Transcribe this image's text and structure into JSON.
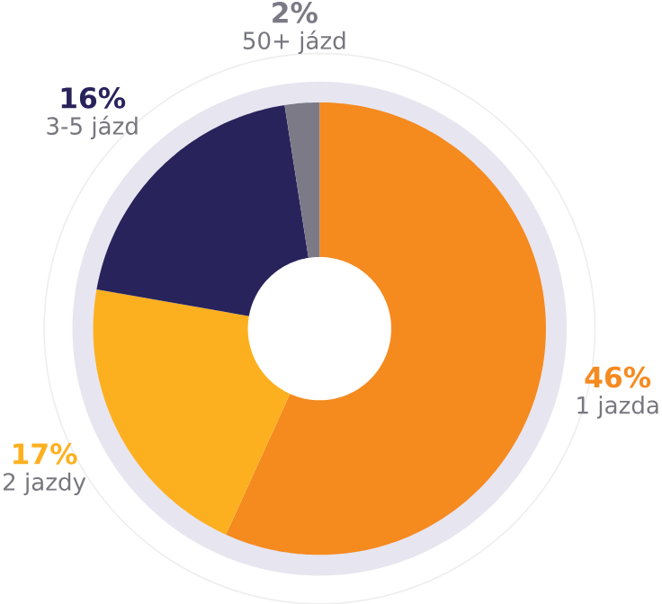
{
  "chart_data": {
    "type": "donut",
    "categories": [
      "1 jazda",
      "2 jazdy",
      "3-5 jázd",
      "50+ jázd"
    ],
    "values": [
      46,
      17,
      16,
      2
    ],
    "colors": [
      "#f58a1f",
      "#fdb01f",
      "#29235c",
      "#7b7a86"
    ],
    "value_labels": [
      "46%",
      "17%",
      "16%",
      "2%"
    ]
  }
}
